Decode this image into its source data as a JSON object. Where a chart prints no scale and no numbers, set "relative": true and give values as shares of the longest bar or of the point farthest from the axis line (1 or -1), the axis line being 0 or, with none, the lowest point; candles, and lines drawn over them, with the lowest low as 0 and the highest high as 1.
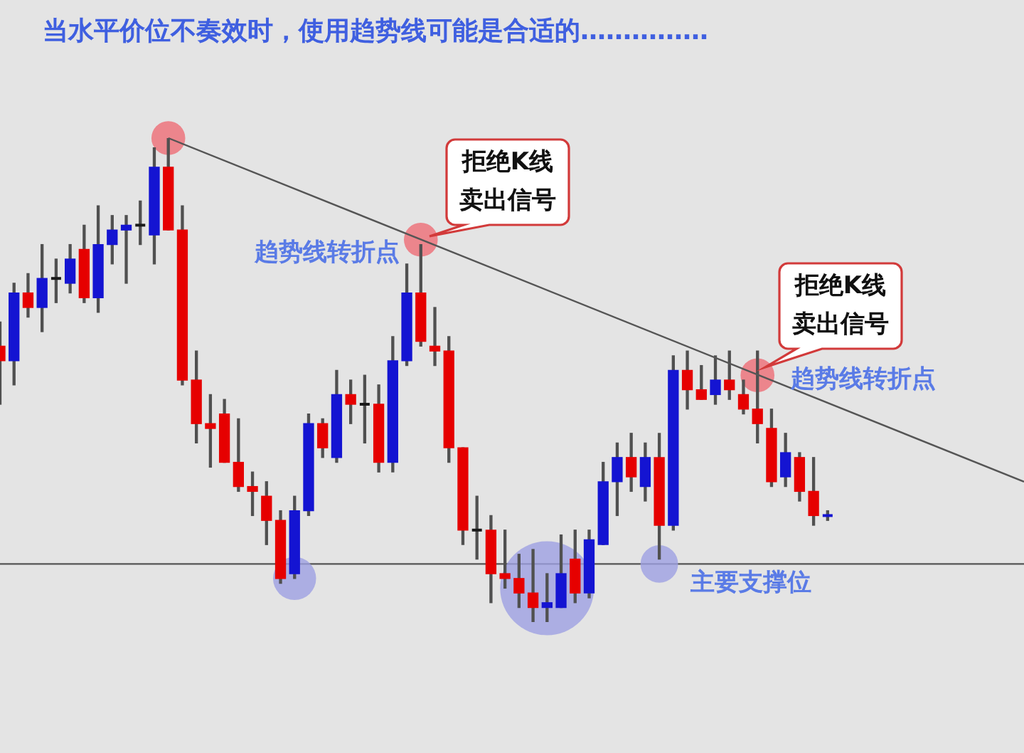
{
  "chart_data": {
    "type": "candlestick",
    "title": "当水平价位不奏效时，使用趋势线可能是合适的……………",
    "relative": true,
    "tick_labels": false,
    "categories": [
      null,
      null,
      null,
      null,
      null,
      null,
      null,
      null,
      null,
      null,
      null,
      null,
      null,
      null,
      null,
      null,
      null,
      null,
      null,
      null,
      null,
      null,
      null,
      null,
      null,
      null,
      null,
      null,
      null,
      null,
      null,
      null,
      null,
      null,
      null,
      null,
      null,
      null,
      null,
      null,
      null,
      null,
      null,
      null,
      null,
      null,
      null,
      null,
      null,
      null,
      null,
      null,
      null,
      null,
      null,
      null,
      null,
      null,
      null,
      null,
      null,
      null,
      null,
      null,
      null,
      null,
      null,
      null,
      null,
      null,
      null,
      null,
      null,
      null
    ],
    "ohlc": [
      [
        0.57,
        0.62,
        0.45,
        0.54
      ],
      [
        0.54,
        0.7,
        0.49,
        0.68
      ],
      [
        0.68,
        0.72,
        0.63,
        0.65
      ],
      [
        0.65,
        0.78,
        0.6,
        0.71
      ],
      [
        0.71,
        0.75,
        0.66,
        0.71
      ],
      [
        0.7,
        0.78,
        0.68,
        0.75
      ],
      [
        0.77,
        0.82,
        0.66,
        0.67
      ],
      [
        0.67,
        0.86,
        0.64,
        0.78
      ],
      [
        0.78,
        0.84,
        0.74,
        0.81
      ],
      [
        0.81,
        0.84,
        0.7,
        0.82
      ],
      [
        0.82,
        0.87,
        0.78,
        0.82
      ],
      [
        0.8,
        0.98,
        0.74,
        0.94
      ],
      [
        0.94,
        1.0,
        0.81,
        0.81
      ],
      [
        0.81,
        0.86,
        0.49,
        0.5
      ],
      [
        0.5,
        0.56,
        0.37,
        0.41
      ],
      [
        0.41,
        0.47,
        0.32,
        0.4
      ],
      [
        0.43,
        0.46,
        0.33,
        0.33
      ],
      [
        0.33,
        0.42,
        0.27,
        0.28
      ],
      [
        0.28,
        0.31,
        0.22,
        0.27
      ],
      [
        0.26,
        0.29,
        0.16,
        0.21
      ],
      [
        0.21,
        0.23,
        0.08,
        0.09
      ],
      [
        0.1,
        0.26,
        0.09,
        0.23
      ],
      [
        0.23,
        0.43,
        0.22,
        0.41
      ],
      [
        0.41,
        0.42,
        0.34,
        0.36
      ],
      [
        0.34,
        0.52,
        0.33,
        0.47
      ],
      [
        0.47,
        0.5,
        0.41,
        0.45
      ],
      [
        0.45,
        0.51,
        0.37,
        0.45
      ],
      [
        0.45,
        0.49,
        0.31,
        0.33
      ],
      [
        0.33,
        0.59,
        0.31,
        0.54
      ],
      [
        0.54,
        0.74,
        0.53,
        0.68
      ],
      [
        0.68,
        0.78,
        0.57,
        0.58
      ],
      [
        0.57,
        0.65,
        0.53,
        0.56
      ],
      [
        0.56,
        0.59,
        0.33,
        0.36
      ],
      [
        0.36,
        0.36,
        0.16,
        0.19
      ],
      [
        0.19,
        0.26,
        0.13,
        0.19
      ],
      [
        0.19,
        0.22,
        0.04,
        0.1
      ],
      [
        0.1,
        0.19,
        0.07,
        0.09
      ],
      [
        0.09,
        0.14,
        0.03,
        0.06
      ],
      [
        0.06,
        0.15,
        0.0,
        0.03
      ],
      [
        0.03,
        0.1,
        0.0,
        0.04
      ],
      [
        0.03,
        0.18,
        0.03,
        0.1
      ],
      [
        0.13,
        0.19,
        0.04,
        0.06
      ],
      [
        0.06,
        0.19,
        0.05,
        0.17
      ],
      [
        0.16,
        0.33,
        0.16,
        0.29
      ],
      [
        0.29,
        0.37,
        0.22,
        0.34
      ],
      [
        0.34,
        0.39,
        0.27,
        0.3
      ],
      [
        0.28,
        0.37,
        0.25,
        0.34
      ],
      [
        0.34,
        0.39,
        0.13,
        0.2
      ],
      [
        0.2,
        0.55,
        0.19,
        0.52
      ],
      [
        0.52,
        0.56,
        0.44,
        0.48
      ],
      [
        0.48,
        0.53,
        0.46,
        0.46
      ],
      [
        0.47,
        0.55,
        0.45,
        0.5
      ],
      [
        0.5,
        0.56,
        0.46,
        0.48
      ],
      [
        0.47,
        0.5,
        0.43,
        0.44
      ],
      [
        0.44,
        0.56,
        0.37,
        0.41
      ],
      [
        0.4,
        0.44,
        0.28,
        0.29
      ],
      [
        0.3,
        0.39,
        0.28,
        0.35
      ],
      [
        0.34,
        0.35,
        0.25,
        0.27
      ],
      [
        0.27,
        0.34,
        0.2,
        0.22
      ],
      [
        0.22,
        0.23,
        0.21,
        0.22
      ],
      null,
      null,
      null,
      null,
      null,
      null,
      null,
      null,
      null,
      null,
      null,
      null,
      null,
      null
    ],
    "color": "#505050",
    "colors": [
      "#e60000",
      "#1414d2",
      "#e60000",
      "#1414d2",
      "#1a1a1a",
      "#1414d2",
      "#e60000",
      "#1414d2",
      "#1414d2",
      "#1414d2",
      "#1a1a1a",
      "#1414d2",
      "#e60000",
      "#e60000",
      "#e60000",
      "#e60000",
      "#e60000",
      "#e60000",
      "#e60000",
      "#e60000",
      "#e60000",
      "#1414d2",
      "#1414d2",
      "#e60000",
      "#1414d2",
      "#e60000",
      "#1a1a1a",
      "#e60000",
      "#1414d2",
      "#1414d2",
      "#e60000",
      "#e60000",
      "#e60000",
      "#e60000",
      "#1a1a1a",
      "#e60000",
      "#e60000",
      "#e60000",
      "#e60000",
      "#1414d2",
      "#1414d2",
      "#e60000",
      "#1414d2",
      "#1414d2",
      "#1414d2",
      "#e60000",
      "#1414d2",
      "#e60000",
      "#1414d2",
      "#e60000",
      "#e60000",
      "#1414d2",
      "#e60000",
      "#e60000",
      "#e60000",
      "#e60000",
      "#1414d2",
      "#e60000",
      "#e60000",
      "#1414d2",
      null,
      null,
      null,
      null,
      null,
      null,
      null,
      null,
      null,
      null,
      null,
      null,
      null,
      null
    ],
    "series": [
      {
        "type": "line",
        "color": "#555555",
        "marker": "none",
        "values": [
          null,
          null,
          null,
          null,
          null,
          null,
          null,
          null,
          null,
          null,
          null,
          null,
          1.0,
          null,
          null,
          null,
          null,
          null,
          null,
          null,
          null,
          null,
          null,
          null,
          null,
          null,
          null,
          null,
          null,
          null,
          null,
          null,
          null,
          null,
          null,
          null,
          null,
          null,
          null,
          null,
          null,
          null,
          null,
          null,
          null,
          null,
          null,
          null,
          null,
          null,
          null,
          null,
          null,
          null,
          null,
          null,
          null,
          null,
          null,
          null,
          null,
          null,
          null,
          null,
          null,
          null,
          null,
          null,
          null,
          null,
          null,
          null,
          null,
          0.29
        ]
      },
      {
        "type": "bubble",
        "color": "#ee6d76",
        "values": [
          null,
          null,
          null,
          null,
          null,
          null,
          null,
          null,
          null,
          null,
          null,
          null,
          1.0,
          null,
          null,
          null,
          null,
          null,
          null,
          null,
          null,
          null,
          null,
          null,
          null,
          null,
          null,
          null,
          null,
          null,
          0.79,
          null,
          null,
          null,
          null,
          null,
          null,
          null,
          null,
          null,
          null,
          null,
          null,
          null,
          null,
          null,
          null,
          null,
          null,
          null,
          null,
          null,
          null,
          null,
          0.51,
          null,
          null,
          null,
          null,
          null,
          null,
          null,
          null,
          null,
          null,
          null,
          null,
          null,
          null,
          null,
          null,
          null,
          null,
          null
        ],
        "sizes": [
          null,
          null,
          null,
          null,
          null,
          null,
          null,
          null,
          null,
          null,
          null,
          null,
          0.13,
          null,
          null,
          null,
          null,
          null,
          null,
          null,
          null,
          null,
          null,
          null,
          null,
          null,
          null,
          null,
          null,
          null,
          0.13,
          null,
          null,
          null,
          null,
          null,
          null,
          null,
          null,
          null,
          null,
          null,
          null,
          null,
          null,
          null,
          null,
          null,
          null,
          null,
          null,
          null,
          null,
          null,
          0.13,
          null,
          null,
          null,
          null,
          null,
          null,
          null,
          null,
          null,
          null,
          null,
          null,
          null,
          null,
          null,
          null,
          null,
          null,
          null
        ]
      },
      {
        "type": "bubble",
        "color": "#9da0e2",
        "values": [
          null,
          null,
          null,
          null,
          null,
          null,
          null,
          null,
          null,
          null,
          null,
          null,
          null,
          null,
          null,
          null,
          null,
          null,
          null,
          null,
          null,
          0.09,
          null,
          null,
          null,
          null,
          null,
          null,
          null,
          null,
          null,
          null,
          null,
          null,
          null,
          null,
          null,
          null,
          null,
          0.07,
          null,
          null,
          null,
          null,
          null,
          null,
          null,
          0.12,
          null,
          null,
          null,
          null,
          null,
          null,
          null,
          null,
          null,
          null,
          null,
          null,
          null,
          null,
          null,
          null,
          null,
          null,
          null,
          null,
          null,
          null,
          null,
          null,
          null,
          null
        ],
        "sizes": [
          null,
          null,
          null,
          null,
          null,
          null,
          null,
          null,
          null,
          null,
          null,
          null,
          null,
          null,
          null,
          null,
          null,
          null,
          null,
          null,
          null,
          0.21,
          null,
          null,
          null,
          null,
          null,
          null,
          null,
          null,
          null,
          null,
          null,
          null,
          null,
          null,
          null,
          null,
          null,
          1,
          null,
          null,
          null,
          null,
          null,
          null,
          null,
          0.16,
          null,
          null,
          null,
          null,
          null,
          null,
          null,
          null,
          null,
          null,
          null,
          null,
          null,
          null,
          null,
          null,
          null,
          null,
          null,
          null,
          null,
          null,
          null,
          null,
          null,
          null
        ]
      }
    ],
    "ref_lines": [
      {
        "axis": "y",
        "value": 0.12,
        "label": "主要支撑位",
        "color": "#555555"
      }
    ],
    "annotations": [
      "拒绝K线卖出信号",
      "趋势线转折点",
      "拒绝K线卖出信号",
      "趋势线转折点"
    ]
  }
}
